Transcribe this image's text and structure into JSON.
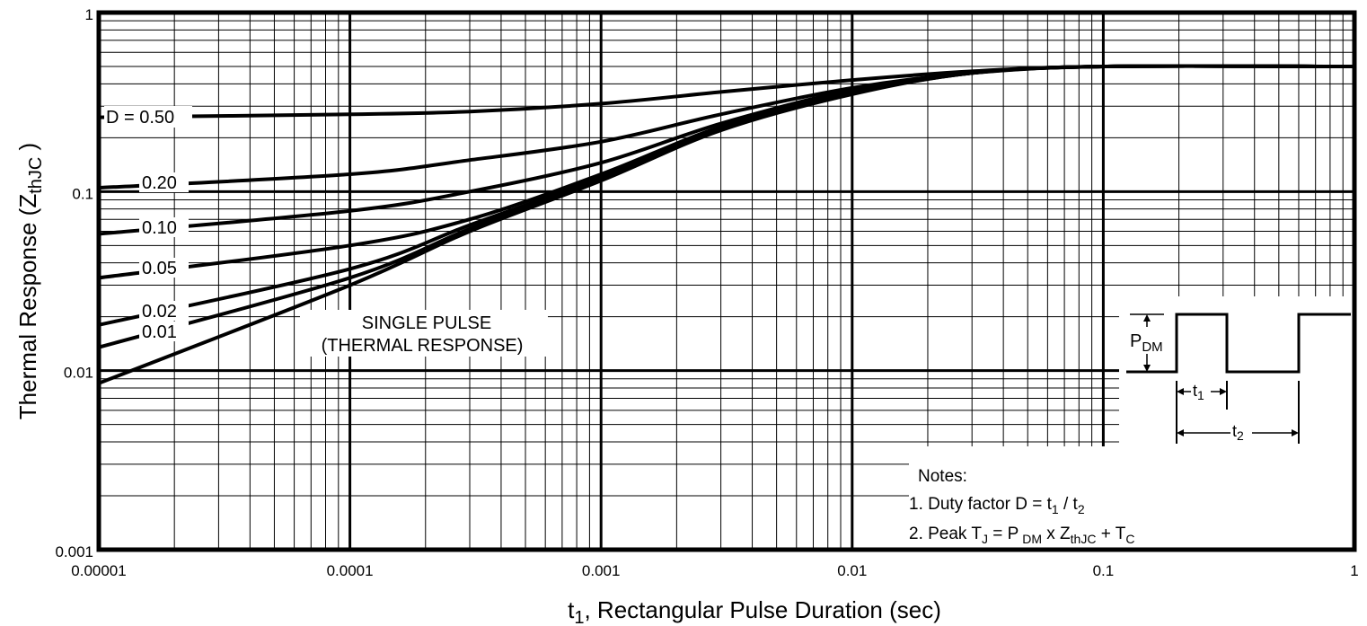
{
  "chart_data": {
    "type": "line",
    "title": "",
    "xlabel_main": "t",
    "xlabel_sub": "1",
    "xlabel_rest": ", Rectangular Pulse Duration (sec)",
    "ylabel_main": "Thermal Response (Z",
    "ylabel_sub": "thJC",
    "ylabel_end": " )",
    "x_scale": "log",
    "y_scale": "log",
    "xlim": [
      1e-05,
      1
    ],
    "ylim": [
      0.001,
      1
    ],
    "x_ticks": [
      "0.00001",
      "0.0001",
      "0.001",
      "0.01",
      "0.1",
      "1"
    ],
    "y_ticks": [
      "0.001",
      "0.01",
      "0.1",
      "1"
    ],
    "grid": true,
    "series": [
      {
        "name": "D = 0.50",
        "label": "D = 0.50",
        "points": [
          [
            1e-05,
            0.26
          ],
          [
            0.0001,
            0.27
          ],
          [
            0.0003,
            0.28
          ],
          [
            0.001,
            0.31
          ],
          [
            0.003,
            0.36
          ],
          [
            0.01,
            0.42
          ],
          [
            0.03,
            0.47
          ],
          [
            0.1,
            0.5
          ],
          [
            1,
            0.5
          ]
        ]
      },
      {
        "name": "0.20",
        "label": "0.20",
        "points": [
          [
            1e-05,
            0.105
          ],
          [
            0.0001,
            0.125
          ],
          [
            0.0003,
            0.15
          ],
          [
            0.001,
            0.19
          ],
          [
            0.003,
            0.27
          ],
          [
            0.01,
            0.38
          ],
          [
            0.03,
            0.46
          ],
          [
            0.1,
            0.5
          ],
          [
            1,
            0.5
          ]
        ]
      },
      {
        "name": "0.10",
        "label": "0.10",
        "points": [
          [
            1e-05,
            0.058
          ],
          [
            0.0001,
            0.078
          ],
          [
            0.0003,
            0.1
          ],
          [
            0.001,
            0.145
          ],
          [
            0.003,
            0.24
          ],
          [
            0.01,
            0.37
          ],
          [
            0.03,
            0.46
          ],
          [
            0.1,
            0.5
          ],
          [
            1,
            0.5
          ]
        ]
      },
      {
        "name": "0.05",
        "label": "0.05",
        "points": [
          [
            1e-05,
            0.033
          ],
          [
            0.0001,
            0.05
          ],
          [
            0.0003,
            0.07
          ],
          [
            0.001,
            0.125
          ],
          [
            0.003,
            0.23
          ],
          [
            0.01,
            0.36
          ],
          [
            0.03,
            0.46
          ],
          [
            0.1,
            0.5
          ],
          [
            1,
            0.5
          ]
        ]
      },
      {
        "name": "0.02",
        "label": "0.02",
        "points": [
          [
            1e-05,
            0.018
          ],
          [
            0.0001,
            0.037
          ],
          [
            0.0003,
            0.065
          ],
          [
            0.001,
            0.12
          ],
          [
            0.003,
            0.225
          ],
          [
            0.01,
            0.355
          ],
          [
            0.03,
            0.46
          ],
          [
            0.1,
            0.5
          ],
          [
            1,
            0.5
          ]
        ]
      },
      {
        "name": "0.01",
        "label": "0.01",
        "points": [
          [
            1e-05,
            0.0135
          ],
          [
            0.0001,
            0.033
          ],
          [
            0.0003,
            0.062
          ],
          [
            0.001,
            0.118
          ],
          [
            0.003,
            0.222
          ],
          [
            0.01,
            0.352
          ],
          [
            0.03,
            0.46
          ],
          [
            0.1,
            0.5
          ],
          [
            1,
            0.5
          ]
        ]
      },
      {
        "name": "SINGLE PULSE",
        "label": "",
        "points": [
          [
            1e-05,
            0.0085
          ],
          [
            0.0001,
            0.03
          ],
          [
            0.0003,
            0.06
          ],
          [
            0.001,
            0.115
          ],
          [
            0.003,
            0.22
          ],
          [
            0.01,
            0.35
          ],
          [
            0.03,
            0.46
          ],
          [
            0.1,
            0.5
          ],
          [
            1,
            0.5
          ]
        ]
      }
    ],
    "annotations": {
      "single_pulse_line1": "SINGLE PULSE",
      "single_pulse_line2": "(THERMAL RESPONSE)"
    },
    "notes": {
      "heading": "Notes:",
      "note1_prefix": "1. Duty factor D = t",
      "note1_sub1": "1",
      "note1_mid": " / t",
      "note1_sub2": "2",
      "note2_prefix": "2. Peak T",
      "note2_sub_j": "J",
      "note2_mid": " = P",
      "note2_sub_dm": " DM",
      "note2_x": " x  Z",
      "note2_sub_thjc": "thJC",
      "note2_plus": " + T",
      "note2_sub_c": "C"
    },
    "waveform": {
      "pdm_main": "P",
      "pdm_sub": "DM",
      "t1_main": "t",
      "t1_sub": "1",
      "t2_main": "t",
      "t2_sub": "2"
    }
  }
}
